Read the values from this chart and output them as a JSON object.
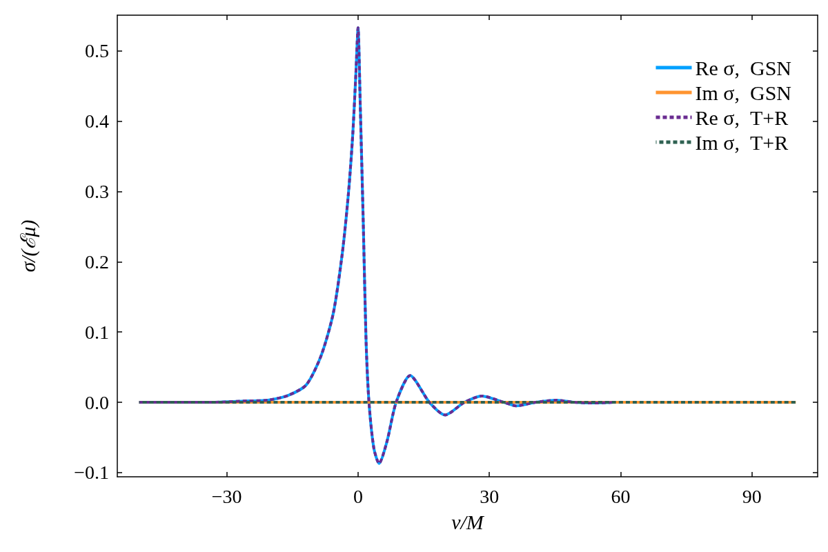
{
  "chart_data": {
    "type": "line",
    "xlabel": "v/M",
    "ylabel": "σ/(ℰμ)",
    "xlim": [
      -55,
      105
    ],
    "xticks": [
      {
        "value": -30,
        "label": "−30"
      },
      0,
      30,
      60,
      90
    ],
    "ylim": [
      -0.106,
      0.551
    ],
    "yticks": [
      {
        "value": -0.1,
        "label": "−0.1"
      },
      {
        "value": 0,
        "label": "0.0"
      },
      0.1,
      0.2,
      0.3,
      0.4,
      0.5
    ],
    "grid": false,
    "legend": "top right",
    "marker": "none",
    "series": [
      {
        "name": "Re σ,  GSN",
        "color": "#00a0ff",
        "line_style": "solid",
        "x": [
          -50,
          -40,
          -34,
          -25,
          -20.6,
          -15.9,
          -11.8,
          -8.4,
          -5.65,
          -3.6,
          -2.2,
          -1.2,
          -0.5,
          0,
          0.5,
          1.2,
          1.85,
          2.5,
          3.6,
          4.8,
          6.6,
          8.7,
          11.9,
          16.3,
          19.9,
          24.3,
          28.3,
          33.3,
          36.1,
          40.6,
          45.3,
          49.5,
          53.7,
          58.4
        ],
        "values": [
          0,
          0,
          0,
          0.002,
          0.003,
          0.01,
          0.025,
          0.067,
          0.127,
          0.212,
          0.297,
          0.382,
          0.467,
          0.533,
          0.424,
          0.254,
          0.084,
          0,
          -0.065,
          -0.087,
          -0.056,
          0,
          0.038,
          0,
          -0.018,
          0,
          0.009,
          0,
          -0.005,
          0,
          0.003,
          0,
          -0.001,
          0
        ]
      },
      {
        "name": "Im σ,  GSN",
        "color": "#ff9430",
        "line_style": "solid",
        "x": [
          -50,
          100
        ],
        "values": [
          0,
          0
        ]
      },
      {
        "name": "Re σ,  T+R",
        "color": "#6a2c91",
        "line_style": "dashed",
        "x": [
          -50,
          -40,
          -34,
          -25,
          -20.6,
          -15.9,
          -11.8,
          -8.4,
          -5.65,
          -3.6,
          -2.2,
          -1.2,
          -0.5,
          0,
          0.5,
          1.2,
          1.85,
          2.5,
          3.6,
          4.8,
          6.6,
          8.7,
          11.9,
          16.3,
          19.9,
          24.3,
          28.3,
          33.3,
          36.1,
          40.6,
          45.3,
          49.5,
          53.7,
          58.4
        ],
        "values": [
          0,
          0,
          0,
          0.002,
          0.003,
          0.01,
          0.025,
          0.067,
          0.127,
          0.212,
          0.297,
          0.382,
          0.467,
          0.533,
          0.424,
          0.254,
          0.084,
          0,
          -0.065,
          -0.087,
          -0.056,
          0,
          0.038,
          0,
          -0.018,
          0,
          0.009,
          0,
          -0.005,
          0,
          0.003,
          0,
          -0.001,
          0
        ]
      },
      {
        "name": "Im σ,  T+R",
        "color": "#2e6151",
        "line_style": "dashed",
        "x": [
          -50,
          100
        ],
        "values": [
          0,
          0
        ]
      }
    ]
  }
}
